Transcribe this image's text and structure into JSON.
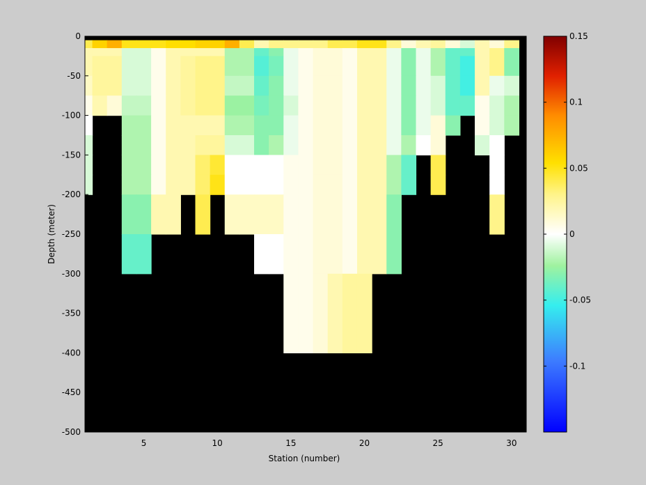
{
  "chart_data": {
    "type": "heatmap",
    "title": "",
    "xlabel": "Station (number)",
    "ylabel": "Depth (meter)",
    "xlim": [
      1,
      31
    ],
    "ylim": [
      -500,
      0
    ],
    "xticks": [
      5,
      10,
      15,
      20,
      25,
      30
    ],
    "yticks": [
      0,
      -50,
      -100,
      -150,
      -200,
      -250,
      -300,
      -350,
      -400,
      -450,
      -500
    ],
    "colorbar": {
      "range": [
        -0.15,
        0.15
      ],
      "ticks": [
        0.15,
        0.1,
        0.05,
        0,
        -0.05,
        -0.1
      ],
      "colormap": "jet-like with white at zero"
    },
    "background_color": "#000000",
    "stations": [
      1,
      2,
      3,
      4,
      5,
      6,
      7,
      8,
      9,
      10,
      11,
      12,
      13,
      14,
      15,
      16,
      17,
      18,
      19,
      20,
      21,
      22,
      23,
      24,
      25,
      26,
      27,
      28,
      29,
      30
    ],
    "depth_top": [
      -5,
      -15,
      -25,
      -50,
      -75,
      -100,
      -125,
      -150,
      -175,
      -200,
      -250,
      -300,
      -400
    ],
    "depth_bottom": [
      -15,
      -25,
      -50,
      -75,
      -100,
      -125,
      -150,
      -175,
      -200,
      -250,
      -300,
      -400,
      -500
    ],
    "values": [
      [
        0.04,
        0.06,
        0.075,
        0.05,
        0.05,
        0.05,
        0.055,
        0.055,
        0.06,
        0.06,
        0.075,
        0.04,
        0.02,
        0.03,
        0.03,
        0.03,
        0.03,
        0.04,
        0.04,
        0.05,
        0.05,
        0.03,
        0.01,
        0.02,
        0.025,
        0.01,
        -0.01,
        0.02,
        0.01,
        0.03
      ],
      [
        0.02,
        0.02,
        0.02,
        -0.01,
        -0.01,
        0.005,
        0.02,
        0.02,
        0.02,
        0.02,
        -0.02,
        -0.02,
        -0.04,
        -0.03,
        -0.005,
        0.005,
        0.01,
        0.01,
        0.005,
        0.02,
        0.02,
        -0.005,
        -0.03,
        -0.005,
        -0.02,
        -0.04,
        -0.04,
        0.02,
        0.03,
        -0.03
      ],
      [
        0.02,
        0.025,
        0.025,
        -0.01,
        -0.01,
        0.005,
        0.02,
        0.025,
        0.03,
        0.03,
        -0.02,
        -0.02,
        -0.045,
        -0.035,
        -0.005,
        0.005,
        0.01,
        0.01,
        0.005,
        0.02,
        0.02,
        -0.005,
        -0.03,
        -0.005,
        -0.02,
        -0.04,
        -0.05,
        0.02,
        0.03,
        -0.03
      ],
      [
        0.015,
        0.025,
        0.025,
        -0.01,
        -0.01,
        0.005,
        0.02,
        0.025,
        0.03,
        0.03,
        -0.015,
        -0.015,
        -0.04,
        -0.03,
        -0.005,
        0.005,
        0.01,
        0.01,
        0.005,
        0.02,
        0.02,
        -0.005,
        -0.03,
        -0.005,
        -0.01,
        -0.04,
        -0.05,
        0.02,
        -0.005,
        -0.01
      ],
      [
        0.005,
        0.02,
        0.01,
        -0.015,
        -0.015,
        0.005,
        0.02,
        0.025,
        0.03,
        0.03,
        -0.025,
        -0.025,
        -0.035,
        -0.03,
        -0.01,
        0.005,
        0.01,
        0.01,
        0.005,
        0.02,
        0.02,
        -0.005,
        -0.03,
        -0.005,
        -0.01,
        -0.04,
        -0.04,
        0.005,
        -0.01,
        -0.02
      ],
      [
        0.0,
        null,
        null,
        -0.02,
        -0.02,
        0.005,
        0.02,
        0.02,
        0.02,
        0.02,
        -0.02,
        -0.02,
        -0.03,
        -0.03,
        -0.005,
        0.005,
        0.01,
        0.01,
        0.005,
        0.02,
        0.02,
        -0.005,
        -0.03,
        -0.005,
        0.01,
        -0.03,
        null,
        0.005,
        -0.01,
        -0.02
      ],
      [
        -0.01,
        null,
        null,
        -0.02,
        -0.02,
        0.005,
        0.02,
        0.02,
        0.025,
        0.025,
        -0.01,
        -0.01,
        -0.03,
        -0.02,
        -0.005,
        0.005,
        0.01,
        0.01,
        0.005,
        0.02,
        0.02,
        -0.005,
        -0.02,
        0.0,
        0.01,
        null,
        null,
        -0.01,
        0.0,
        null
      ],
      [
        -0.01,
        null,
        null,
        -0.02,
        -0.02,
        0.005,
        0.02,
        0.02,
        0.035,
        0.045,
        0.0,
        0.0,
        0.0,
        0.0,
        0.005,
        0.005,
        0.01,
        0.01,
        0.005,
        0.02,
        0.02,
        -0.02,
        -0.04,
        null,
        0.04,
        null,
        null,
        null,
        0.0,
        null
      ],
      [
        -0.01,
        null,
        null,
        -0.02,
        -0.02,
        0.005,
        0.02,
        0.02,
        0.035,
        0.05,
        0.0,
        0.0,
        0.0,
        0.0,
        0.005,
        0.005,
        0.01,
        0.01,
        0.005,
        0.02,
        0.02,
        -0.02,
        -0.04,
        null,
        0.04,
        null,
        null,
        null,
        0.0,
        null
      ],
      [
        null,
        null,
        null,
        -0.03,
        -0.03,
        0.02,
        0.02,
        null,
        0.04,
        null,
        0.015,
        0.015,
        0.015,
        0.015,
        0.005,
        0.005,
        0.01,
        0.01,
        0.005,
        0.02,
        0.02,
        -0.03,
        null,
        null,
        null,
        null,
        null,
        null,
        0.03,
        null
      ],
      [
        null,
        null,
        null,
        -0.04,
        -0.04,
        null,
        null,
        null,
        null,
        null,
        null,
        null,
        0.0,
        0.0,
        0.005,
        0.005,
        0.01,
        0.01,
        0.005,
        0.02,
        0.02,
        -0.03,
        null,
        null,
        null,
        null,
        null,
        null,
        null,
        null
      ],
      [
        null,
        null,
        null,
        null,
        null,
        null,
        null,
        null,
        null,
        null,
        null,
        null,
        null,
        null,
        0.005,
        0.005,
        0.01,
        0.02,
        0.025,
        0.025,
        null,
        null,
        null,
        null,
        null,
        null,
        null,
        null,
        null,
        null
      ],
      [
        null,
        null,
        null,
        null,
        null,
        null,
        null,
        null,
        null,
        null,
        null,
        null,
        null,
        null,
        null,
        null,
        null,
        null,
        null,
        null,
        null,
        null,
        null,
        null,
        null,
        null,
        null,
        null,
        null,
        null
      ]
    ]
  }
}
